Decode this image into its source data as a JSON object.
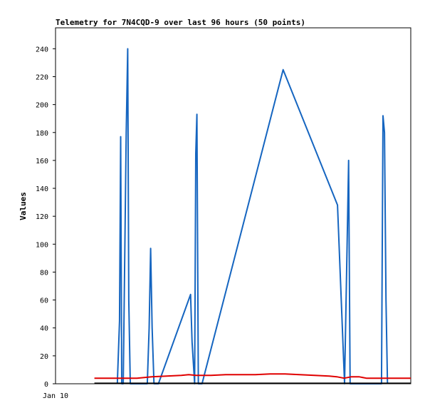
{
  "chart_data": {
    "type": "line",
    "title": "Telemetry for 7N4CQD-9 over last 96 hours (50 points)",
    "ylabel": "Values",
    "xlabel": "",
    "x_tick_labels": [
      "Jan 10"
    ],
    "ylim": [
      0,
      255
    ],
    "y_ticks": [
      0,
      20,
      40,
      60,
      80,
      100,
      120,
      140,
      160,
      180,
      200,
      220,
      240
    ],
    "xlim": [
      0,
      96
    ],
    "grid": false,
    "series": [
      {
        "color": "#1565c0",
        "x": [
          16.7,
          17.3,
          17.6,
          17.9,
          18.3,
          19.1,
          19.5,
          19.8,
          20.2,
          20.7,
          24.8,
          25.3,
          25.7,
          26.1,
          26.6,
          27.1,
          27.8,
          36.5,
          36.9,
          37.6,
          37.9,
          38.2,
          38.6,
          38.9,
          39.6,
          61.5,
          76.2,
          78.1,
          78.8,
          79.2,
          79.6,
          80.0,
          81.2,
          88.1,
          88.5,
          88.9,
          89.3,
          89.7
        ],
        "y": [
          0,
          45,
          177,
          0,
          0,
          180,
          240,
          60,
          0,
          0,
          0,
          40,
          97,
          40,
          0,
          0,
          0,
          64,
          30,
          0,
          165,
          193,
          0,
          0,
          0,
          225,
          128,
          0,
          100,
          160,
          0,
          0,
          0,
          0,
          192,
          180,
          60,
          0
        ]
      },
      {
        "color": "#e00000",
        "x": [
          10.5,
          14,
          18,
          22,
          26,
          30,
          34,
          36,
          38,
          42,
          46,
          50,
          54,
          58,
          62,
          66,
          70,
          74,
          76,
          78,
          80,
          82,
          84,
          88,
          92,
          96
        ],
        "y": [
          4,
          4,
          4,
          4,
          5,
          5.5,
          6,
          6.5,
          6,
          6,
          6.5,
          6.5,
          6.5,
          7,
          7,
          6.5,
          6,
          5.5,
          5,
          4,
          5,
          5,
          4,
          4,
          4,
          4
        ]
      },
      {
        "color": "#000000",
        "x": [
          10.5,
          96
        ],
        "y": [
          0.3,
          0.3
        ]
      }
    ]
  }
}
